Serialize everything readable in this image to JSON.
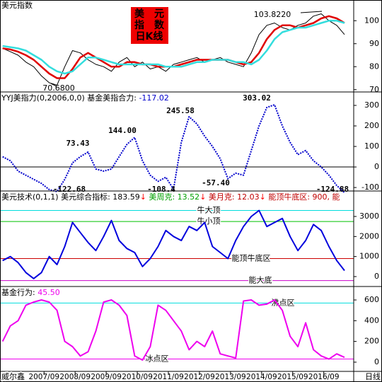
{
  "x_axis": {
    "xlim": [
      -1,
      135
    ],
    "xticks": [
      {
        "value": 16,
        "label": "2007/09"
      },
      {
        "value": 28,
        "label": "2008/09"
      },
      {
        "value": 40,
        "label": "2009/09"
      },
      {
        "value": 52,
        "label": "2010/09"
      },
      {
        "value": 64,
        "label": "2011/09"
      },
      {
        "value": 76,
        "label": "2012/09"
      },
      {
        "value": 88,
        "label": "2013/09"
      },
      {
        "value": 100,
        "label": "2014/09"
      },
      {
        "value": 112,
        "label": "2015/09"
      },
      {
        "value": 124,
        "label": "2016/09"
      }
    ],
    "left_label": "威尔鑫",
    "right_label": "日线"
  },
  "chart_data": [
    {
      "type": "line",
      "title_segments": [
        {
          "text": "美元指数",
          "color": "#000000"
        }
      ],
      "badge": [
        "美　元",
        "指　数",
        "日K线"
      ],
      "annotations": [
        "103.8220",
        "70.6800"
      ],
      "ylim": [
        69,
        109
      ],
      "yticks": [
        70,
        80,
        90,
        100
      ],
      "x": [
        0,
        3,
        6,
        9,
        12,
        15,
        18,
        21,
        24,
        27,
        30,
        33,
        36,
        39,
        42,
        45,
        48,
        51,
        54,
        57,
        60,
        63,
        66,
        69,
        72,
        75,
        78,
        81,
        84,
        87,
        90,
        93,
        96,
        99,
        102,
        105,
        108,
        111,
        114,
        117,
        120,
        123,
        126,
        129,
        132
      ],
      "series": [
        {
          "color": "#000000",
          "width": 1,
          "values": [
            88,
            86.5,
            85,
            82,
            80,
            76,
            73,
            72,
            80,
            87,
            86,
            83,
            81,
            80,
            78,
            82,
            84,
            80,
            82,
            79,
            80,
            78,
            81,
            82,
            83,
            84,
            82,
            83,
            84,
            82,
            81,
            80,
            86,
            94,
            98,
            99,
            97,
            96,
            98,
            99,
            102,
            103,
            100,
            98,
            94
          ]
        },
        {
          "color": "#e00000",
          "width": 2.5,
          "values": [
            88,
            87.5,
            86.5,
            85,
            83,
            80,
            77,
            75,
            75,
            79,
            84,
            86,
            84,
            82,
            80,
            80,
            82,
            82,
            81,
            81,
            80,
            80,
            80,
            81,
            82,
            83,
            83,
            83,
            83,
            83,
            82,
            81,
            82,
            86,
            92,
            96,
            98,
            98,
            97,
            98,
            99,
            101,
            102,
            101,
            99
          ]
        },
        {
          "color": "#33dddd",
          "width": 2.5,
          "values": [
            89,
            88.5,
            88,
            87,
            85,
            83,
            80,
            78,
            77,
            78,
            81,
            84,
            84,
            83,
            82,
            81,
            81,
            81,
            81,
            81,
            81,
            80,
            80,
            80,
            81,
            82,
            82,
            83,
            83,
            83,
            82,
            82,
            81,
            83,
            87,
            92,
            95,
            96,
            97,
            97,
            98,
            99,
            100,
            100,
            99
          ]
        }
      ]
    },
    {
      "type": "line",
      "title_segments": [
        {
          "text": "YYJ美指力(0,2006,0,0) 基金美指合力: ",
          "color": "#000000"
        },
        {
          "text": "-117.02",
          "color": "#0000cc"
        }
      ],
      "annotations": [
        "73.43",
        "144.00",
        "245.58",
        "303.02",
        "-57.40",
        "-122.68",
        "-108.4",
        "-124.88"
      ],
      "ylim": [
        -117,
        362
      ],
      "yticks": [
        -100,
        0,
        100,
        200,
        300
      ],
      "ref_lines": [
        {
          "value": 0,
          "color": "#000000"
        }
      ],
      "x": [
        0,
        3,
        6,
        9,
        12,
        15,
        18,
        21,
        24,
        27,
        30,
        33,
        36,
        39,
        42,
        45,
        48,
        51,
        54,
        57,
        60,
        63,
        66,
        69,
        72,
        75,
        78,
        81,
        84,
        87,
        90,
        93,
        96,
        99,
        102,
        105,
        108,
        111,
        114,
        117,
        120,
        123,
        126,
        129,
        132
      ],
      "series": [
        {
          "color": "#0000cc",
          "width": 2,
          "dash": true,
          "values": [
            50,
            30,
            -20,
            -40,
            -60,
            -80,
            -110,
            -120,
            -60,
            20,
            50,
            73,
            -10,
            -20,
            -10,
            50,
            110,
            144,
            30,
            -40,
            -70,
            -50,
            -108,
            120,
            245,
            210,
            150,
            100,
            40,
            -57,
            -30,
            -40,
            80,
            200,
            290,
            303,
            200,
            120,
            60,
            80,
            30,
            0,
            -40,
            -90,
            -125
          ]
        }
      ]
    },
    {
      "type": "line",
      "title_segments": [
        {
          "text": "美元技术(0,1,1) 美元综合指标: 183.59",
          "color": "#000000"
        },
        {
          "text": "↓",
          "color": "#ff0000"
        },
        {
          "text": " 美周克: 13.52",
          "color": "#00a000"
        },
        {
          "text": "↓",
          "color": "#ff0000"
        },
        {
          "text": " 美月克: 12.03",
          "color": "#c00000"
        },
        {
          "text": "↓",
          "color": "#ff0000"
        },
        {
          "text": " 能顶牛底区: 900, 能",
          "color": "#c00000"
        }
      ],
      "ylim": [
        -495,
        4236
      ],
      "yticks": [
        0,
        1000,
        2000,
        3000
      ],
      "ref_lines": [
        {
          "value": 3300,
          "color": "#00dddd",
          "label": "牛大顶"
        },
        {
          "value": 2750,
          "color": "#00c000",
          "label": "牛小顶"
        },
        {
          "value": 900,
          "color": "#cc0000",
          "label": "能顶牛底区"
        },
        {
          "value": -200,
          "color": "#cc00cc",
          "label": "能大底"
        }
      ],
      "x": [
        0,
        3,
        6,
        9,
        12,
        15,
        18,
        21,
        24,
        27,
        30,
        33,
        36,
        39,
        42,
        45,
        48,
        51,
        54,
        57,
        60,
        63,
        66,
        69,
        72,
        75,
        78,
        81,
        84,
        87,
        90,
        93,
        96,
        99,
        102,
        105,
        108,
        111,
        114,
        117,
        120,
        123,
        126,
        129,
        132
      ],
      "series": [
        {
          "color": "#0000dd",
          "width": 2,
          "values": [
            800,
            1000,
            700,
            200,
            -100,
            200,
            1000,
            600,
            1500,
            2700,
            2200,
            1700,
            1300,
            2000,
            2800,
            1800,
            1400,
            1200,
            500,
            900,
            1500,
            2300,
            2000,
            1800,
            2500,
            2300,
            2700,
            1500,
            1200,
            900,
            1800,
            2500,
            3000,
            3300,
            2500,
            2700,
            2900,
            2000,
            1300,
            1800,
            2600,
            2300,
            1500,
            800,
            300
          ]
        }
      ]
    },
    {
      "type": "line",
      "title_segments": [
        {
          "text": "基金行为: ",
          "color": "#000000"
        },
        {
          "text": "45.50",
          "color": "#ee00ee"
        }
      ],
      "ylim": [
        -89,
        723
      ],
      "yticks": [
        0,
        200,
        400,
        600
      ],
      "ref_lines": [
        {
          "value": 570,
          "color": "#00dddd",
          "label": "沸点区"
        },
        {
          "value": 30,
          "color": "#ee00ee",
          "label": "冰点区"
        }
      ],
      "x": [
        0,
        3,
        6,
        9,
        12,
        15,
        18,
        21,
        24,
        27,
        30,
        33,
        36,
        39,
        42,
        45,
        48,
        51,
        54,
        57,
        60,
        63,
        66,
        69,
        72,
        75,
        78,
        81,
        84,
        87,
        90,
        93,
        96,
        99,
        102,
        105,
        108,
        111,
        114,
        117,
        120,
        123,
        126,
        129,
        132
      ],
      "series": [
        {
          "color": "#ee00ee",
          "width": 2,
          "values": [
            200,
            350,
            400,
            550,
            580,
            600,
            580,
            500,
            200,
            150,
            60,
            100,
            300,
            580,
            600,
            550,
            450,
            60,
            20,
            150,
            550,
            500,
            400,
            300,
            120,
            200,
            150,
            300,
            80,
            60,
            40,
            590,
            600,
            550,
            560,
            600,
            500,
            250,
            150,
            380,
            120,
            60,
            30,
            80,
            46
          ]
        }
      ]
    }
  ]
}
